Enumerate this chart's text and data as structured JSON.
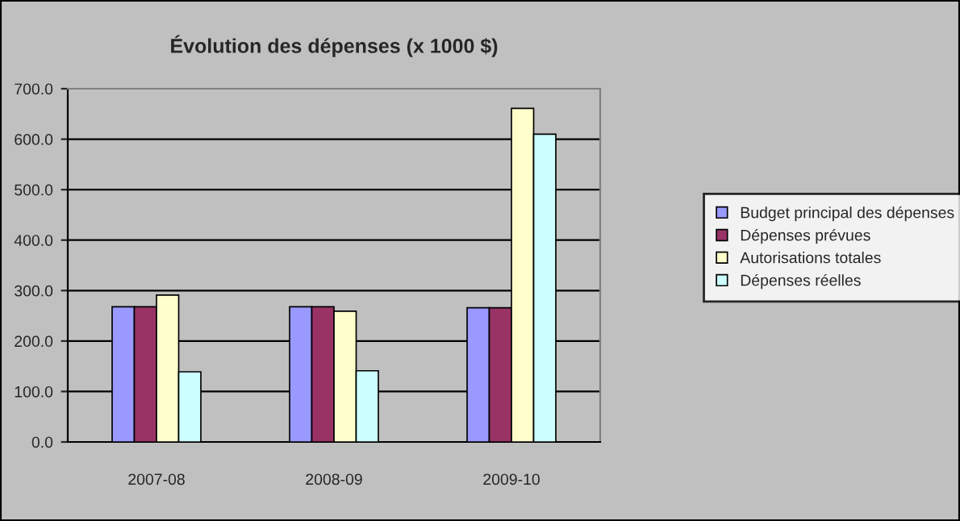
{
  "chart_data": {
    "type": "bar",
    "title": "Évolution des dépenses (x 1000 $)",
    "categories": [
      "2007-08",
      "2008-09",
      "2009-10"
    ],
    "series": [
      {
        "name": "Budget principal des dépenses",
        "color": "#9999ff",
        "values": [
          268,
          268,
          266
        ]
      },
      {
        "name": "Dépenses prévues",
        "color": "#993366",
        "values": [
          268,
          268,
          266
        ]
      },
      {
        "name": "Autorisations totales",
        "color": "#ffffcc",
        "values": [
          291,
          259,
          661
        ]
      },
      {
        "name": "Dépenses réelles",
        "color": "#ccffff",
        "values": [
          139,
          141,
          610
        ]
      }
    ],
    "ylim": [
      0,
      700
    ],
    "yticks": [
      {
        "value": 0,
        "label": "0.0"
      },
      {
        "value": 100,
        "label": "100.0"
      },
      {
        "value": 200,
        "label": "200.0"
      },
      {
        "value": 300,
        "label": "300.0"
      },
      {
        "value": 400,
        "label": "400.0"
      },
      {
        "value": 500,
        "label": "500.0"
      },
      {
        "value": 600,
        "label": "600.0"
      },
      {
        "value": 700,
        "label": "700.0"
      }
    ],
    "grid": "y",
    "legend": "right"
  }
}
